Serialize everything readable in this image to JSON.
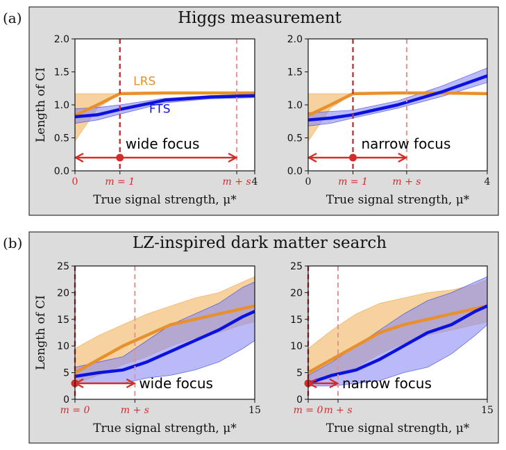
{
  "figure": {
    "colors": {
      "panel_bg": "#dcdcdc",
      "plot_bg": "#ffffff",
      "lrs": "#e8902c",
      "lrs_band": "#f0b45e",
      "fts": "#0b12e0",
      "fts_band": "#8b8cf2",
      "marker": "#d42b2b",
      "marker_light": "#e39393"
    }
  },
  "chart_data": [
    {
      "panel": "a",
      "panel_label": "(a)",
      "section_title": "Higgs measurement",
      "type": "line",
      "x": [
        0,
        0.5,
        1,
        2,
        3,
        4
      ],
      "xlim": [
        0,
        4
      ],
      "ylim": [
        0,
        2
      ],
      "yticks": [
        "0.0",
        "0.5",
        "1.0",
        "1.5",
        "2.0"
      ],
      "ylabel": "Length of CI",
      "plots": [
        {
          "xlabel": "True signal strength, μ*",
          "xtick_labels": [
            {
              "x": 0,
              "label": "0",
              "color": "red"
            },
            {
              "x": 1,
              "label": "m = 1",
              "color": "red"
            },
            {
              "x": 3.6,
              "label": "m + s",
              "color": "red"
            },
            {
              "x": 4,
              "label": "4",
              "color": "black"
            }
          ],
          "m": 1,
          "m_plus_s": 3.6,
          "arrow": {
            "from": 0,
            "to": 3.6,
            "text": "wide focus"
          },
          "series_labels": [
            {
              "text": "LRS",
              "x": 1.3,
              "y": 1.3,
              "series": "LRS"
            },
            {
              "text": "FTS",
              "x": 1.65,
              "y": 0.88,
              "series": "FTS"
            }
          ],
          "series": [
            {
              "name": "LRS",
              "values": [
                0.84,
                1.0,
                1.17,
                1.18,
                1.18,
                1.18
              ],
              "lower": [
                0.45,
                0.95,
                1.17,
                1.17,
                1.17,
                1.17
              ],
              "upper": [
                1.17,
                1.17,
                1.17,
                1.19,
                1.19,
                1.19
              ]
            },
            {
              "name": "FTS",
              "values": [
                0.82,
                0.85,
                0.93,
                1.07,
                1.12,
                1.14
              ],
              "lower": [
                0.72,
                0.77,
                0.86,
                1.03,
                1.09,
                1.11
              ],
              "upper": [
                0.94,
                0.96,
                1.0,
                1.1,
                1.14,
                1.16
              ]
            }
          ]
        },
        {
          "xlabel": "True signal strength, μ*",
          "xtick_labels": [
            {
              "x": 0,
              "label": "0",
              "color": "black"
            },
            {
              "x": 1,
              "label": "m = 1",
              "color": "red"
            },
            {
              "x": 2.2,
              "label": "m + s",
              "color": "red"
            },
            {
              "x": 4,
              "label": "4",
              "color": "black"
            }
          ],
          "m": 1,
          "m_plus_s": 2.2,
          "arrow": {
            "from": 0,
            "to": 2.2,
            "text": "narrow focus"
          },
          "series": [
            {
              "name": "LRS",
              "values": [
                0.84,
                1.0,
                1.17,
                1.18,
                1.18,
                1.17
              ],
              "lower": [
                0.45,
                0.95,
                1.17,
                1.17,
                1.17,
                1.16
              ],
              "upper": [
                1.17,
                1.17,
                1.17,
                1.19,
                1.19,
                1.18
              ]
            },
            {
              "name": "FTS",
              "values": [
                0.77,
                0.8,
                0.85,
                1.0,
                1.2,
                1.44
              ],
              "lower": [
                0.68,
                0.72,
                0.8,
                0.95,
                1.13,
                1.34
              ],
              "upper": [
                0.88,
                0.9,
                0.92,
                1.06,
                1.29,
                1.56
              ]
            }
          ]
        }
      ]
    },
    {
      "panel": "b",
      "panel_label": "(b)",
      "section_title": "LZ-inspired dark matter search",
      "type": "line",
      "x": [
        0,
        2,
        4,
        6,
        8,
        10,
        12,
        14,
        15
      ],
      "xlim": [
        0,
        15
      ],
      "ylim": [
        0,
        25
      ],
      "yticks": [
        "0",
        "5",
        "10",
        "15",
        "20",
        "25"
      ],
      "ylabel": "Length of CI",
      "plots": [
        {
          "xlabel": "True signal strength, μ*",
          "xtick_labels": [
            {
              "x": 0,
              "label": "m = 0",
              "color": "red"
            },
            {
              "x": 5,
              "label": "m + s",
              "color": "red"
            },
            {
              "x": 15,
              "label": "15",
              "color": "black"
            }
          ],
          "m": 0,
          "m_plus_s": 5,
          "arrow": {
            "from": 0,
            "to": 5,
            "text": "wide focus"
          },
          "series": [
            {
              "name": "LRS",
              "values": [
                5,
                7.5,
                10,
                12,
                14,
                15,
                16,
                17,
                17.5
              ],
              "lower": [
                3,
                4.5,
                6.5,
                8,
                10,
                11.5,
                12.5,
                14,
                14.5
              ],
              "upper": [
                9.5,
                12,
                14,
                16,
                17.5,
                19,
                20,
                22,
                23
              ]
            },
            {
              "name": "FTS",
              "values": [
                4.3,
                5,
                5.5,
                7,
                9,
                11,
                13,
                15.5,
                16.5
              ],
              "lower": [
                3,
                3,
                3,
                4,
                4.5,
                5.5,
                7,
                9.5,
                11
              ],
              "upper": [
                6,
                7,
                8,
                11,
                14,
                16,
                18,
                21,
                22
              ]
            }
          ]
        },
        {
          "xlabel": "True signal strength, μ*",
          "xtick_labels": [
            {
              "x": 0,
              "label": "m = 0",
              "color": "red"
            },
            {
              "x": 2.5,
              "label": "m + s",
              "color": "red"
            },
            {
              "x": 15,
              "label": "15",
              "color": "black"
            }
          ],
          "m": 0,
          "m_plus_s": 2.5,
          "arrow": {
            "from": 0,
            "to": 2.5,
            "text": "narrow focus"
          },
          "series": [
            {
              "name": "LRS",
              "values": [
                5,
                7.5,
                10,
                12.5,
                14,
                15,
                16,
                17,
                17.5
              ],
              "lower": [
                3,
                4,
                6,
                8.5,
                10.5,
                12,
                13,
                14,
                14.5
              ],
              "upper": [
                9.5,
                13,
                16,
                18,
                19,
                20,
                20.5,
                21.5,
                22.5
              ]
            },
            {
              "name": "FTS",
              "values": [
                3,
                4.5,
                5.5,
                7.5,
                10,
                12.5,
                14,
                16.5,
                17.5
              ],
              "lower": [
                2.5,
                2.5,
                3,
                3.5,
                5,
                6,
                8.5,
                12,
                14
              ],
              "upper": [
                4.5,
                7,
                10,
                13,
                16,
                18.5,
                20,
                22,
                23
              ]
            }
          ]
        }
      ]
    }
  ]
}
